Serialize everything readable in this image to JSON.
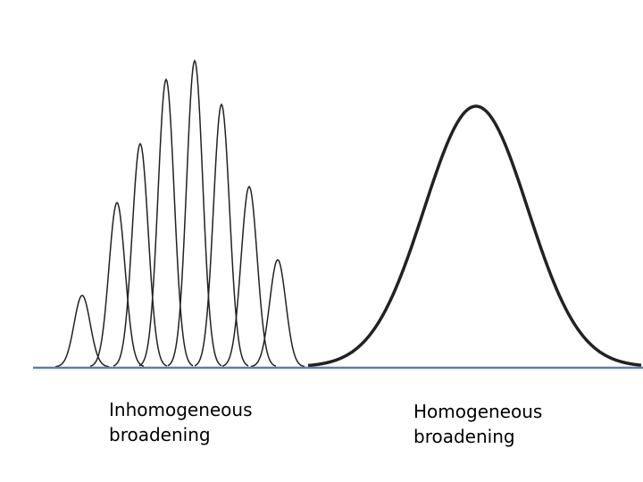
{
  "labels": {
    "inhomogeneous": [
      "Inhomogeneous",
      "broadening"
    ],
    "homogeneous": [
      "Homogeneous",
      "broadening"
    ]
  }
}
